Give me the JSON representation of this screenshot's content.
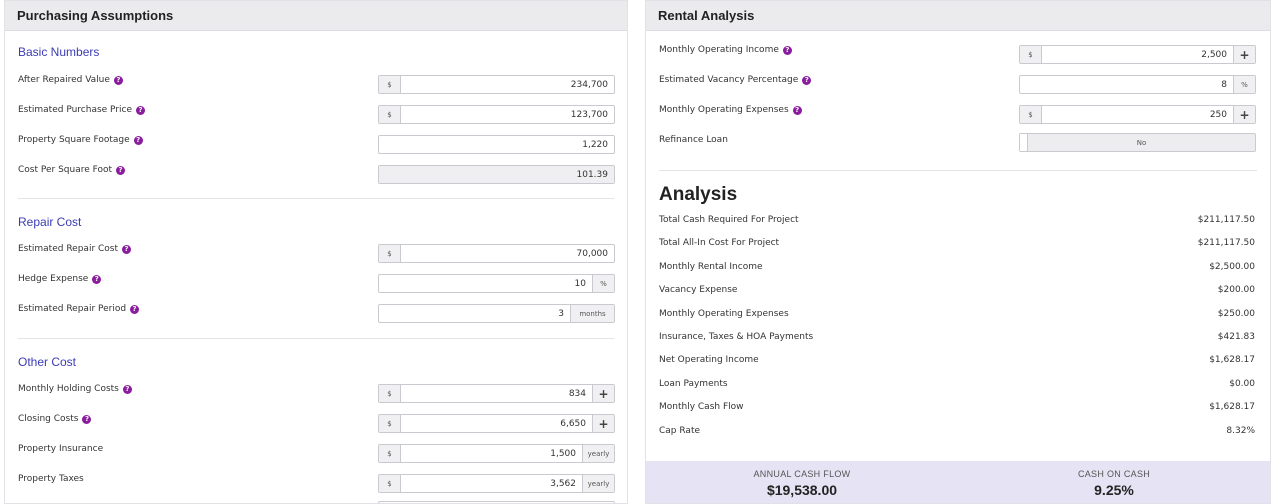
{
  "purchasing": {
    "title": "Purchasing Assumptions",
    "basic": {
      "title": "Basic Numbers",
      "after_repaired_value": {
        "label": "After Repaired Value",
        "prefix": "$",
        "value": "234,700"
      },
      "purchase_price": {
        "label": "Estimated Purchase Price",
        "prefix": "$",
        "value": "123,700"
      },
      "square_footage": {
        "label": "Property Square Footage",
        "value": "1,220"
      },
      "cost_per_sqft": {
        "label": "Cost Per Square Foot",
        "value": "101.39"
      }
    },
    "repair": {
      "title": "Repair Cost",
      "repair_cost": {
        "label": "Estimated Repair Cost",
        "prefix": "$",
        "value": "70,000"
      },
      "hedge_expense": {
        "label": "Hedge Expense",
        "value": "10",
        "suffix": "%"
      },
      "repair_period": {
        "label": "Estimated Repair Period",
        "value": "3",
        "suffix": "months"
      }
    },
    "other": {
      "title": "Other Cost",
      "holding_costs": {
        "label": "Monthly Holding Costs",
        "prefix": "$",
        "value": "834",
        "button": "+"
      },
      "closing_costs": {
        "label": "Closing Costs",
        "prefix": "$",
        "value": "6,650",
        "button": "+"
      },
      "insurance": {
        "label": "Property Insurance",
        "prefix": "$",
        "value": "1,500",
        "suffix": "yearly"
      },
      "taxes": {
        "label": "Property Taxes",
        "prefix": "$",
        "value": "3,562",
        "suffix": "yearly"
      }
    }
  },
  "rental": {
    "title": "Rental Analysis",
    "operating_income": {
      "label": "Monthly Operating Income",
      "prefix": "$",
      "value": "2,500",
      "button": "+"
    },
    "vacancy": {
      "label": "Estimated Vacancy Percentage",
      "value": "8",
      "suffix": "%"
    },
    "operating_expenses": {
      "label": "Monthly Operating Expenses",
      "prefix": "$",
      "value": "250",
      "button": "+"
    },
    "refinance": {
      "label": "Refinance Loan",
      "value": "No"
    }
  },
  "analysis": {
    "title": "Analysis",
    "rows": [
      {
        "label": "Total Cash Required For Project",
        "value": "$211,117.50"
      },
      {
        "label": "Total All-In Cost For Project",
        "value": "$211,117.50"
      },
      {
        "label": "Monthly Rental Income",
        "value": "$2,500.00"
      },
      {
        "label": "Vacancy Expense",
        "value": "$200.00"
      },
      {
        "label": "Monthly Operating Expenses",
        "value": "$250.00"
      },
      {
        "label": "Insurance, Taxes & HOA Payments",
        "value": "$421.83"
      },
      {
        "label": "Net Operating Income",
        "value": "$1,628.17"
      },
      {
        "label": "Loan Payments",
        "value": "$0.00"
      },
      {
        "label": "Monthly Cash Flow",
        "value": "$1,628.17"
      },
      {
        "label": "Cap Rate",
        "value": "8.32%"
      }
    ]
  },
  "summary": {
    "annual_cash_flow": {
      "label": "ANNUAL CASH FLOW",
      "value": "$19,538.00"
    },
    "cash_on_cash": {
      "label": "CASH ON CASH",
      "value": "9.25%"
    }
  },
  "icons": {
    "help": "question-circle-icon"
  },
  "colors": {
    "accent": "#3b3bb5",
    "help": "#8a1c9e",
    "summary_bg": "#e6e4f4"
  }
}
